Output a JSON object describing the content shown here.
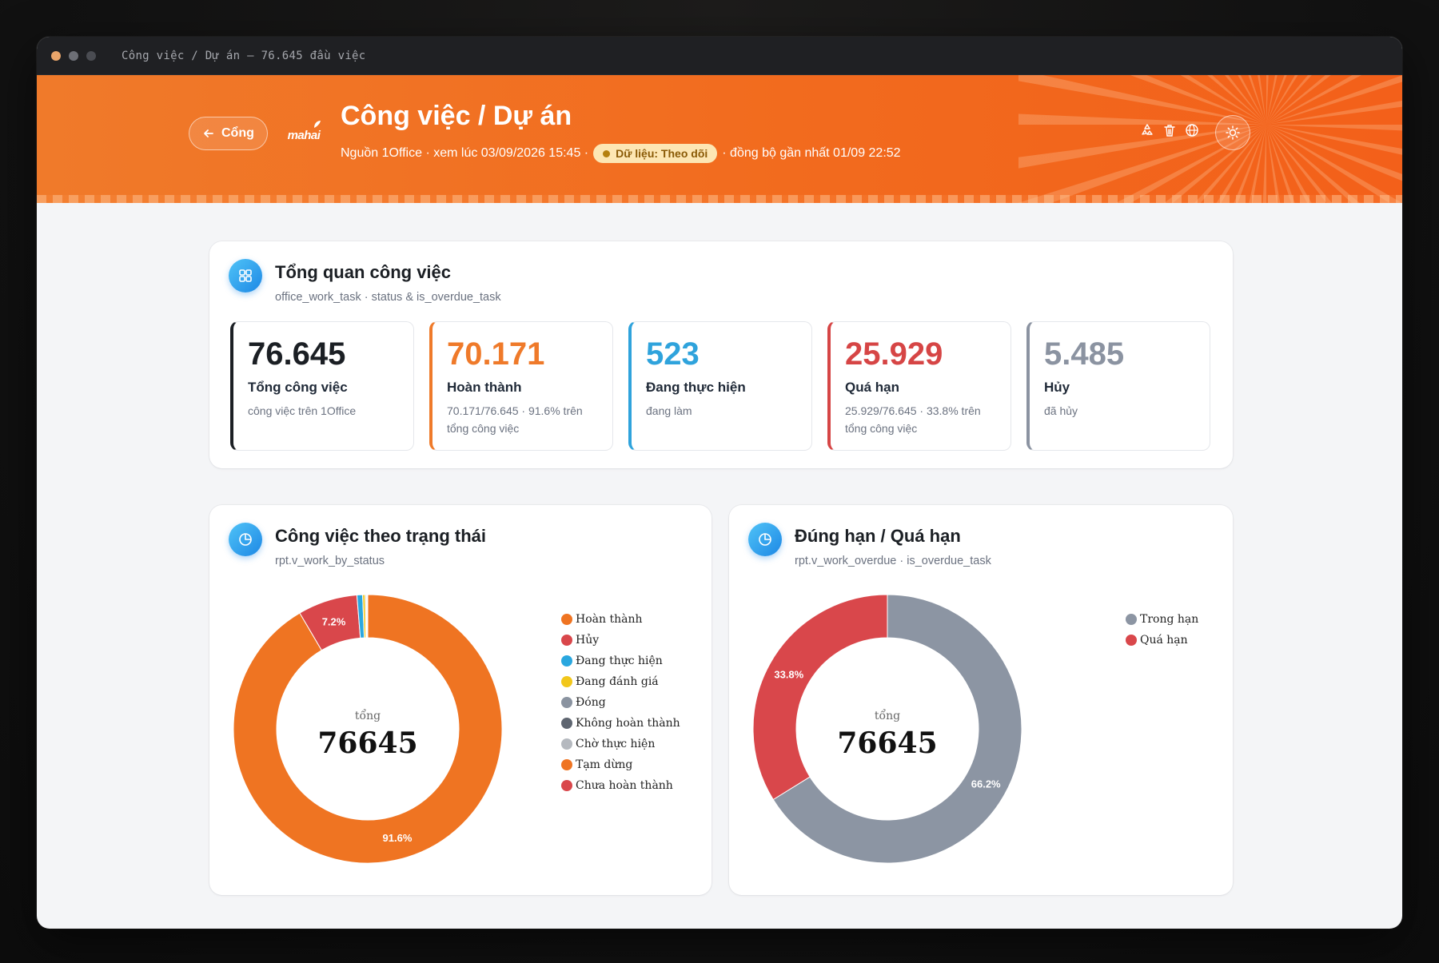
{
  "window": {
    "title": "Công việc / Dự án — 76.645 đầu việc"
  },
  "header": {
    "back_label": "Cổng",
    "logo_text": "mahai",
    "title": "Công việc / Dự án",
    "meta_prefix": "Nguồn 1Office · xem lúc 03/09/2026 15:45 ·",
    "badge": "Dữ liệu: Theo dõi",
    "meta_suffix": "· đồng bộ gần nhất 01/09 22:52",
    "icons": [
      "recycle-icon",
      "trash-icon",
      "globe-icon",
      "sun-icon"
    ]
  },
  "overview": {
    "title": "Tổng quan công việc",
    "subtitle": "office_work_task · status & is_overdue_task",
    "stats": [
      {
        "value": "76.645",
        "label": "Tổng công việc",
        "desc": "công việc trên 1Office",
        "color": "#1b1f24"
      },
      {
        "value": "70.171",
        "label": "Hoàn thành",
        "desc": "70.171/76.645 · 91.6% trên tổng công việc",
        "color": "#ef7a2a"
      },
      {
        "value": "523",
        "label": "Đang thực hiện",
        "desc": "đang làm",
        "color": "#2fa3dc"
      },
      {
        "value": "25.929",
        "label": "Quá hạn",
        "desc": "25.929/76.645 · 33.8% trên tổng công việc",
        "color": "#d64545"
      },
      {
        "value": "5.485",
        "label": "Hủy",
        "desc": "đã hủy",
        "color": "#8b93a1"
      }
    ]
  },
  "status_card": {
    "title": "Công việc theo trạng thái",
    "subtitle": "rpt.v_work_by_status"
  },
  "overdue_card": {
    "title": "Đúng hạn / Quá hạn",
    "subtitle": "rpt.v_work_overdue · is_overdue_task"
  },
  "chart_data": [
    {
      "type": "pie",
      "center_label": "tổng",
      "center_value": "76645",
      "categories": [
        "Hoàn thành",
        "Hủy",
        "Đang thực hiện",
        "Đang đánh giá",
        "Đóng",
        "Không hoàn thành",
        "Chờ thực hiện",
        "Tạm dừng",
        "Chưa hoàn thành"
      ],
      "values": [
        70171,
        5485,
        523,
        230,
        100,
        60,
        40,
        20,
        16
      ],
      "colors": [
        "#ef7422",
        "#d9474b",
        "#2aa7df",
        "#f2c71b",
        "#8a93a0",
        "#5e6570",
        "#b5b9bf",
        "#ef7422",
        "#d9474b"
      ],
      "data_labels": [
        "91.6%",
        "7.2%",
        "",
        "",
        "",
        "",
        "",
        "",
        ""
      ],
      "legend_position": "right"
    },
    {
      "type": "pie",
      "center_label": "tổng",
      "center_value": "76645",
      "categories": [
        "Trong hạn",
        "Quá hạn"
      ],
      "values": [
        50716,
        25929
      ],
      "colors": [
        "#8c95a3",
        "#d9474b"
      ],
      "data_labels": [
        "66.2%",
        "33.8%"
      ],
      "legend_position": "right"
    }
  ]
}
